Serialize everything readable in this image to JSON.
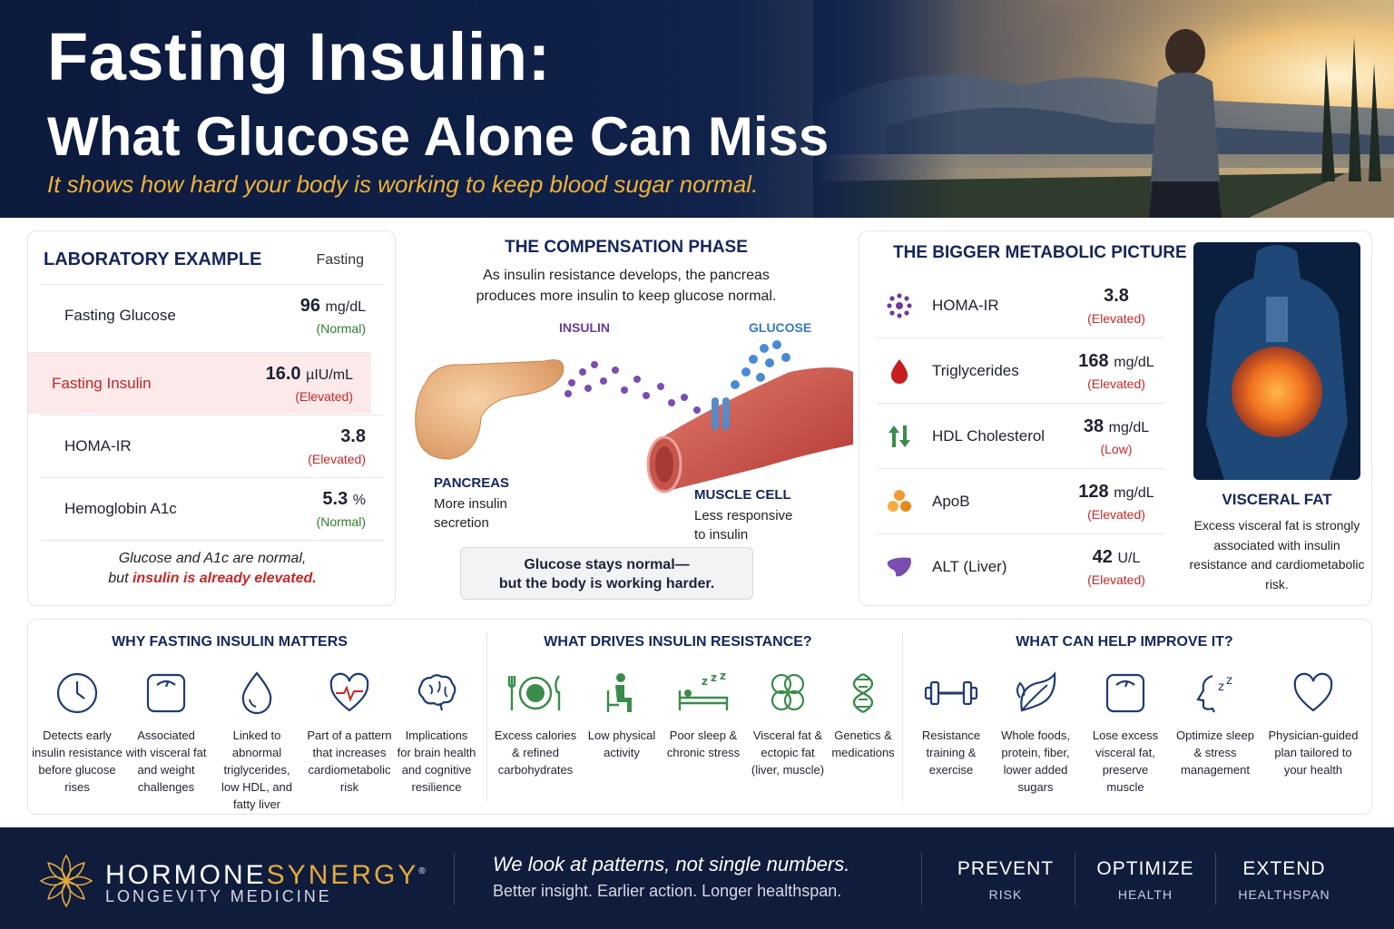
{
  "header": {
    "title": "Fasting Insulin:",
    "subtitle": "What Glucose Alone Can Miss",
    "tagline": "It shows how hard your body is working to keep blood sugar normal."
  },
  "lab": {
    "title": "LABORATORY EXAMPLE",
    "column": "Fasting",
    "rows": [
      {
        "name": "Fasting Glucose",
        "value": "96",
        "unit": "mg/dL",
        "status": "(Normal)"
      },
      {
        "name": "Fasting Insulin",
        "value": "16.0",
        "unit": "µIU/mL",
        "status": "(Elevated)"
      },
      {
        "name": "HOMA-IR",
        "value": "3.8",
        "unit": "",
        "status": "(Elevated)"
      },
      {
        "name": "Hemoglobin A1c",
        "value": "5.3",
        "unit": "%",
        "status": "(Normal)"
      }
    ],
    "footer_line1": "Glucose and A1c are normal,",
    "footer_line2_pre": "but ",
    "footer_line2_emph": "insulin is already elevated."
  },
  "compensation": {
    "title": "THE COMPENSATION PHASE",
    "desc_line1": "As insulin resistance develops, the pancreas",
    "desc_line2": "produces more insulin to keep glucose normal.",
    "insulin_label": "INSULIN",
    "glucose_label": "GLUCOSE",
    "pancreas_label": "PANCREAS",
    "pancreas_desc1": "More insulin",
    "pancreas_desc2": "secretion",
    "muscle_label": "MUSCLE CELL",
    "muscle_desc1": "Less responsive",
    "muscle_desc2": "to insulin",
    "box_line1": "Glucose stays normal—",
    "box_line2": "but the body is working harder."
  },
  "bigger": {
    "title": "THE BIGGER METABOLIC PICTURE",
    "rows": [
      {
        "icon": "cells-icon",
        "name": "HOMA-IR",
        "value": "3.8",
        "unit": "",
        "status": "(Elevated)"
      },
      {
        "icon": "blood-drop-icon",
        "name": "Triglycerides",
        "value": "168",
        "unit": "mg/dL",
        "status": "(Elevated)"
      },
      {
        "icon": "up-down-arrows-icon",
        "name": "HDL Cholesterol",
        "value": "38",
        "unit": "mg/dL",
        "status": "(Low)"
      },
      {
        "icon": "particles-icon",
        "name": "ApoB",
        "value": "128",
        "unit": "mg/dL",
        "status": "(Elevated)"
      },
      {
        "icon": "liver-icon",
        "name": "ALT (Liver)",
        "value": "42",
        "unit": "U/L",
        "status": "(Elevated)"
      }
    ],
    "visceral_title": "VISCERAL FAT",
    "visceral_desc1": "Excess visceral fat is strongly",
    "visceral_desc2": "associated with insulin",
    "visceral_desc3": "resistance and cardiometabolic",
    "visceral_desc4": "risk."
  },
  "why": {
    "title": "WHY FASTING INSULIN MATTERS",
    "items": [
      {
        "icon": "clock-icon",
        "lines": [
          "Detects early",
          "insulin resistance",
          "before glucose",
          "rises"
        ]
      },
      {
        "icon": "scale-icon",
        "lines": [
          "Associated",
          "with visceral fat",
          "and weight",
          "challenges"
        ]
      },
      {
        "icon": "drop-icon",
        "lines": [
          "Linked to abnormal",
          "triglycerides,",
          "low HDL, and",
          "fatty liver"
        ]
      },
      {
        "icon": "heart-pulse-icon",
        "lines": [
          "Part of a pattern",
          "that increases",
          "cardiometabolic",
          "risk"
        ]
      },
      {
        "icon": "brain-icon",
        "lines": [
          "Implications",
          "for brain health",
          "and cognitive",
          "resilience"
        ]
      }
    ]
  },
  "drives": {
    "title": "WHAT DRIVES INSULIN RESISTANCE?",
    "items": [
      {
        "icon": "plate-icon",
        "lines": [
          "Excess calories",
          "& refined",
          "carbohydrates"
        ]
      },
      {
        "icon": "sitting-person-icon",
        "lines": [
          "Low physical",
          "activity"
        ]
      },
      {
        "icon": "sleep-bed-icon",
        "lines": [
          "Poor sleep &",
          "chronic stress"
        ]
      },
      {
        "icon": "fat-cells-icon",
        "lines": [
          "Visceral fat &",
          "ectopic fat",
          "(liver, muscle)"
        ]
      },
      {
        "icon": "dna-icon",
        "lines": [
          "Genetics &",
          "medications"
        ]
      }
    ]
  },
  "improve": {
    "title": "WHAT CAN HELP IMPROVE IT?",
    "items": [
      {
        "icon": "dumbbell-icon",
        "lines": [
          "Resistance",
          "training &",
          "exercise"
        ]
      },
      {
        "icon": "leaf-icon",
        "lines": [
          "Whole foods,",
          "protein, fiber,",
          "lower added",
          "sugars"
        ]
      },
      {
        "icon": "scale-icon",
        "lines": [
          "Lose excess",
          "visceral fat,",
          "preserve",
          "muscle"
        ]
      },
      {
        "icon": "sleep-head-icon",
        "lines": [
          "Optimize sleep",
          "& stress",
          "management"
        ]
      },
      {
        "icon": "heart-icon",
        "lines": [
          "Physician-guided",
          "plan tailored to",
          "your health"
        ]
      }
    ]
  },
  "footer": {
    "brand_a": "HORMONE",
    "brand_b": "SYNERGY",
    "brand_mark": "®",
    "brand_sub": "LONGEVITY MEDICINE",
    "tagline": "We look at patterns, not single numbers.",
    "tagline2": "Better insight. Earlier action. Longer healthspan.",
    "pillars": [
      {
        "big": "PREVENT",
        "small": "RISK"
      },
      {
        "big": "OPTIMIZE",
        "small": "HEALTH"
      },
      {
        "big": "EXTEND",
        "small": "HEALTHSPAN"
      }
    ]
  },
  "colors": {
    "navy": "#0f1c3c",
    "gold": "#e3a93d",
    "elevated": "#c62828",
    "normal": "#2f7d2f",
    "icon_blue": "#1f3b73",
    "icon_green": "#3a8c4a"
  }
}
